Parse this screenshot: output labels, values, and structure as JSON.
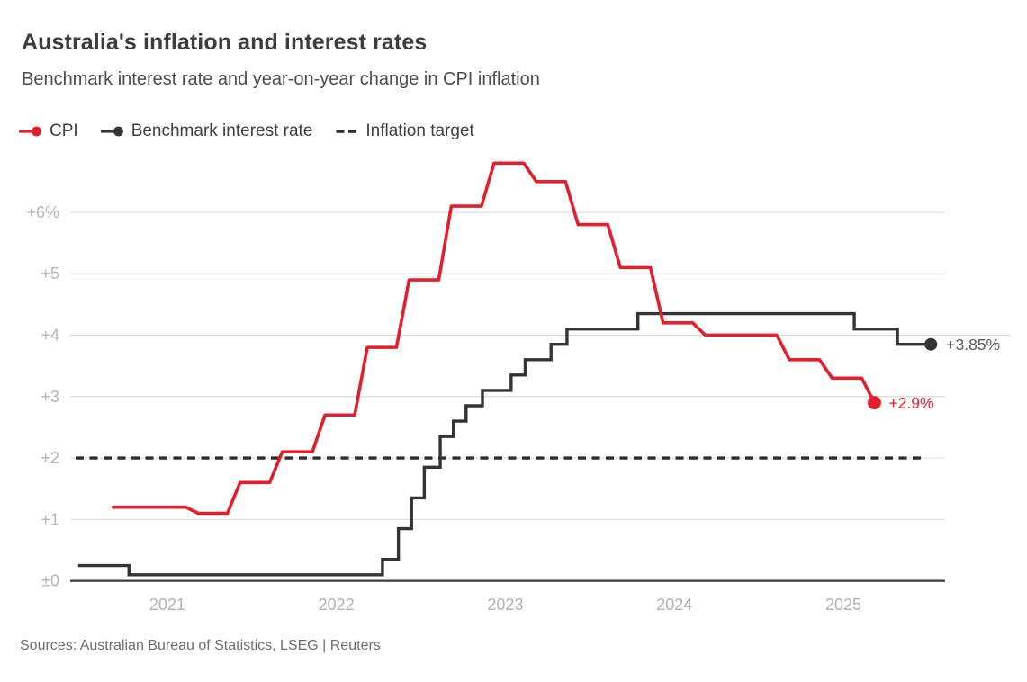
{
  "header": {
    "title": "Australia's inflation and interest rates",
    "subtitle": "Benchmark interest rate and year-on-year change in CPI inflation"
  },
  "legend": [
    {
      "label": "CPI",
      "marker": "line-dot",
      "color": "#e31e2d"
    },
    {
      "label": "Benchmark interest rate",
      "marker": "line-dot",
      "color": "#343434"
    },
    {
      "label": "Inflation target",
      "marker": "dashes",
      "color": "#2d2d2d"
    }
  ],
  "footer": {
    "sources": "Sources: Australian Bureau of Statistics, LSEG | Reuters"
  },
  "chart_data": {
    "type": "line",
    "title": "Australia's inflation and interest rates",
    "subtitle": "Benchmark interest rate and year-on-year change in CPI inflation",
    "unit": "percent, year-on-year",
    "grid": true,
    "legend_position": "top-left",
    "y_axis": {
      "range": [
        0,
        7
      ],
      "ticks": [
        {
          "value": 0,
          "label": "±0"
        },
        {
          "value": 1,
          "label": "+1"
        },
        {
          "value": 2,
          "label": "+2"
        },
        {
          "value": 3,
          "label": "+3"
        },
        {
          "value": 4,
          "label": "+4"
        },
        {
          "value": 5,
          "label": "+5"
        },
        {
          "value": 6,
          "label": "+6%"
        }
      ]
    },
    "x_axis": {
      "range": [
        "2020-07",
        "2025-09"
      ],
      "year_labels": [
        "2021",
        "2022",
        "2023",
        "2024",
        "2025"
      ]
    },
    "target_line": {
      "name": "Inflation target",
      "value": 2,
      "style": "dashed",
      "color": "#2d2d2d"
    },
    "series": [
      {
        "name": "Benchmark interest rate",
        "color": "#343434",
        "style": "step",
        "end_label": "+3.85%",
        "end_label_color": "#595959",
        "end_date": "2025-08-01",
        "points": [
          [
            "2020-07-15",
            0.25
          ],
          [
            "2020-11-03",
            0.1
          ],
          [
            "2022-05-03",
            0.35
          ],
          [
            "2022-06-07",
            0.85
          ],
          [
            "2022-07-05",
            1.35
          ],
          [
            "2022-08-02",
            1.85
          ],
          [
            "2022-09-06",
            2.35
          ],
          [
            "2022-10-04",
            2.6
          ],
          [
            "2022-11-01",
            2.85
          ],
          [
            "2022-12-06",
            3.1
          ],
          [
            "2023-02-07",
            3.35
          ],
          [
            "2023-03-07",
            3.6
          ],
          [
            "2023-05-02",
            3.85
          ],
          [
            "2023-06-06",
            4.1
          ],
          [
            "2023-11-07",
            4.35
          ],
          [
            "2025-02-18",
            4.1
          ],
          [
            "2025-05-20",
            3.85
          ]
        ]
      },
      {
        "name": "CPI",
        "color": "#e31e2d",
        "style": "quarterly-step",
        "end_label": "+2.9%",
        "end_label_color": "#e31e2d",
        "points": [
          [
            "2020-09-30",
            1.2
          ],
          [
            "2020-12-31",
            1.2
          ],
          [
            "2021-03-31",
            1.1
          ],
          [
            "2021-06-30",
            1.6
          ],
          [
            "2021-09-30",
            2.1
          ],
          [
            "2021-12-31",
            2.7
          ],
          [
            "2022-03-31",
            3.8
          ],
          [
            "2022-06-30",
            4.9
          ],
          [
            "2022-09-30",
            6.1
          ],
          [
            "2022-12-31",
            6.8
          ],
          [
            "2023-03-31",
            6.5
          ],
          [
            "2023-06-30",
            5.8
          ],
          [
            "2023-09-30",
            5.1
          ],
          [
            "2023-12-31",
            4.2
          ],
          [
            "2024-03-31",
            4.0
          ],
          [
            "2024-06-30",
            4.0
          ],
          [
            "2024-09-30",
            3.6
          ],
          [
            "2024-12-31",
            3.3
          ],
          [
            "2025-03-31",
            2.9
          ]
        ]
      }
    ]
  }
}
